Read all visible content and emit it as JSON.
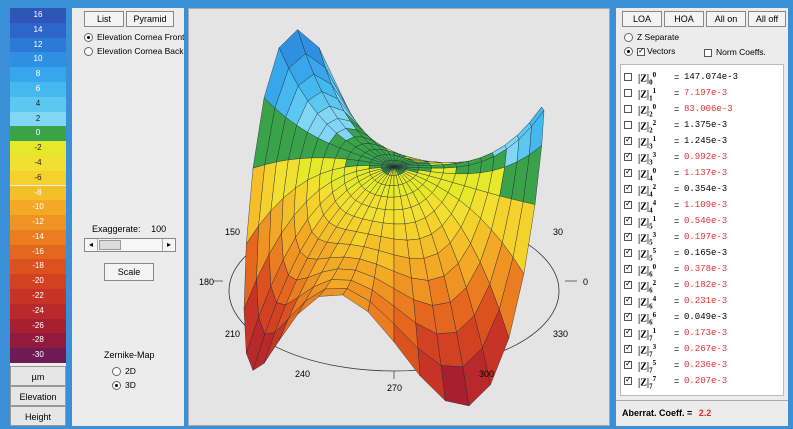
{
  "scale": {
    "labels": [
      "16",
      "14",
      "12",
      "10",
      "8",
      "6",
      "4",
      "2",
      "0",
      "-2",
      "-4",
      "-6",
      "-8",
      "-10",
      "-12",
      "-14",
      "-16",
      "-18",
      "-20",
      "-22",
      "-24",
      "-26",
      "-28",
      "-30"
    ],
    "colors": [
      "#2f55b8",
      "#2b66c8",
      "#2b7bd6",
      "#2f8fe0",
      "#37a6ea",
      "#45b9ef",
      "#5cc8f2",
      "#80d6f4",
      "#3aa34a",
      "#e6e82a",
      "#f2e030",
      "#f5d12c",
      "#f5bf2a",
      "#f3a826",
      "#ef9322",
      "#eb7d20",
      "#e5661f",
      "#dc521f",
      "#d24121",
      "#c73425",
      "#b9282a",
      "#a72032",
      "#921b3d",
      "#6e1a55"
    ],
    "unit_label": "µm",
    "elevation_label": "Elevation",
    "height_label": "Height"
  },
  "controls": {
    "list_label": "List",
    "pyramid_label": "Pyramid",
    "elev_front_label": "Elevation Cornea Front",
    "elev_back_label": "Elevation Cornea Back",
    "exaggerate_label": "Exaggerate:",
    "exaggerate_value": "100",
    "scale_button": "Scale",
    "zernike_label": "Zernike-Map",
    "mode_2d": "2D",
    "mode_3d": "3D"
  },
  "plot": {
    "angles": {
      "a150": "150",
      "a180": "180",
      "a210": "210",
      "a240": "240",
      "a270": "270",
      "a300": "300",
      "a330": "330",
      "a0": "0",
      "a30": "30"
    }
  },
  "right": {
    "loa_label": "LOA",
    "hoa_label": "HOA",
    "allon_label": "All on",
    "alloff_label": "All off",
    "zsep_label": "Z Separate",
    "vectors_label": "Vectors",
    "norm_label": "Norm Coeffs.",
    "coeffs": [
      {
        "n": "0",
        "m": "0",
        "val": "147.074e-3",
        "color": "#000000",
        "checked": false,
        "eq": "="
      },
      {
        "n": "1",
        "m": "1",
        "val": "7.197e-3",
        "color": "#e03030",
        "checked": false,
        "eq": "="
      },
      {
        "n": "2",
        "m": "0",
        "val": "83.006e-3",
        "color": "#e03030",
        "checked": false,
        "eq": "="
      },
      {
        "n": "2",
        "m": "2",
        "val": "1.375e-3",
        "color": "#000000",
        "checked": false,
        "eq": "="
      },
      {
        "n": "3",
        "m": "1",
        "val": "1.245e-3",
        "color": "#000000",
        "checked": true,
        "eq": "="
      },
      {
        "n": "3",
        "m": "3",
        "val": "0.992e-3",
        "color": "#e03030",
        "checked": true,
        "eq": "="
      },
      {
        "n": "4",
        "m": "0",
        "val": "1.137e-3",
        "color": "#e03030",
        "checked": true,
        "eq": "="
      },
      {
        "n": "4",
        "m": "2",
        "val": "0.354e-3",
        "color": "#000000",
        "checked": true,
        "eq": "="
      },
      {
        "n": "4",
        "m": "4",
        "val": "1.109e-3",
        "color": "#e03030",
        "checked": true,
        "eq": "="
      },
      {
        "n": "5",
        "m": "1",
        "val": "0.546e-3",
        "color": "#e03030",
        "checked": true,
        "eq": "="
      },
      {
        "n": "5",
        "m": "3",
        "val": "0.197e-3",
        "color": "#e03030",
        "checked": true,
        "eq": "="
      },
      {
        "n": "5",
        "m": "5",
        "val": "0.165e-3",
        "color": "#000000",
        "checked": true,
        "eq": "="
      },
      {
        "n": "6",
        "m": "0",
        "val": "0.378e-3",
        "color": "#e03030",
        "checked": true,
        "eq": "="
      },
      {
        "n": "6",
        "m": "2",
        "val": "0.182e-3",
        "color": "#e03030",
        "checked": true,
        "eq": "="
      },
      {
        "n": "6",
        "m": "4",
        "val": "0.231e-3",
        "color": "#e03030",
        "checked": true,
        "eq": "="
      },
      {
        "n": "6",
        "m": "6",
        "val": "0.049e-3",
        "color": "#000000",
        "checked": true,
        "eq": "="
      },
      {
        "n": "7",
        "m": "1",
        "val": "0.173e-3",
        "color": "#e03030",
        "checked": true,
        "eq": "="
      },
      {
        "n": "7",
        "m": "3",
        "val": "0.267e-3",
        "color": "#e03030",
        "checked": true,
        "eq": "="
      },
      {
        "n": "7",
        "m": "5",
        "val": "0.236e-3",
        "color": "#e03030",
        "checked": true,
        "eq": "="
      },
      {
        "n": "7",
        "m": "7",
        "val": "0.207e-3",
        "color": "#e03030",
        "checked": true,
        "eq": "="
      }
    ],
    "aberr_label": "Aberrat. Coeff. =",
    "aberr_value": "2.2"
  }
}
